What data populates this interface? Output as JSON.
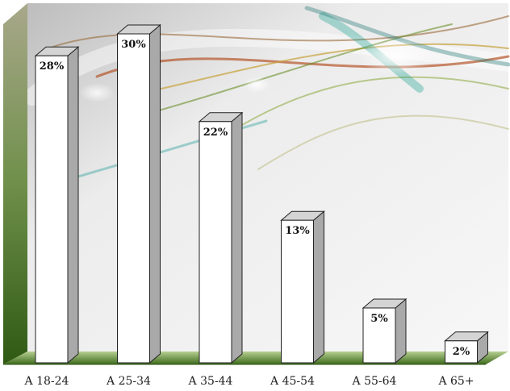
{
  "chart_data": {
    "type": "bar",
    "categories": [
      "A 18-24",
      "A 25-34",
      "A 35-44",
      "A 45-54",
      "A 55-64",
      "A 65+"
    ],
    "values": [
      28,
      30,
      22,
      13,
      5,
      2
    ],
    "data_labels": [
      "28%",
      "30%",
      "22%",
      "13%",
      "5%",
      "2%"
    ],
    "title": "",
    "xlabel": "",
    "ylabel": "",
    "ylim": [
      0,
      32
    ],
    "grid": false,
    "legend": "none",
    "style": "3d-bar"
  },
  "colors": {
    "bar_front": "#ffffff",
    "bar_side": "#a9a9a9",
    "bar_top": "#d4d4d4",
    "bar_edge": "#222222",
    "floor_light": "#a4bf7c",
    "floor_dark": "#3d6b1c",
    "left_wall": "#4a7a28"
  }
}
